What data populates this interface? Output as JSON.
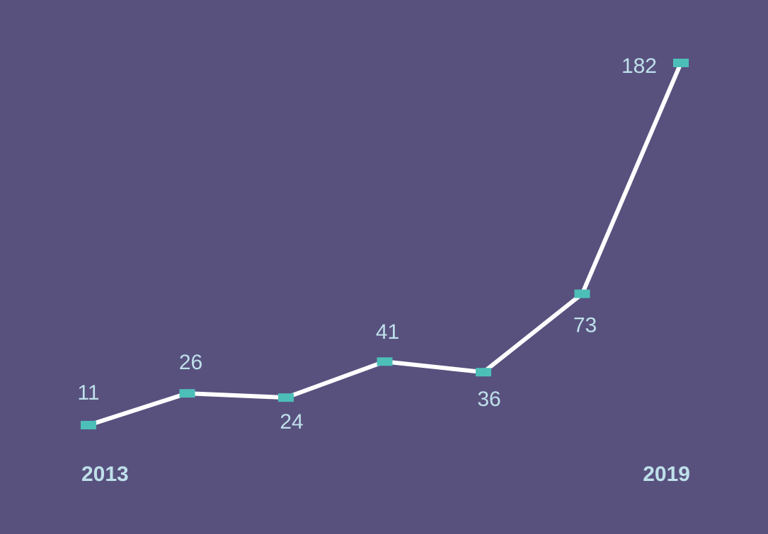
{
  "chart_data": {
    "type": "line",
    "categories": [
      "2013",
      null,
      null,
      null,
      null,
      null,
      "2019"
    ],
    "series": [
      {
        "color": "#ffffff",
        "values": [
          11,
          26,
          24,
          41,
          36,
          73,
          182
        ]
      }
    ],
    "marker_color": "#4dbfb9",
    "background": "#58517e"
  }
}
